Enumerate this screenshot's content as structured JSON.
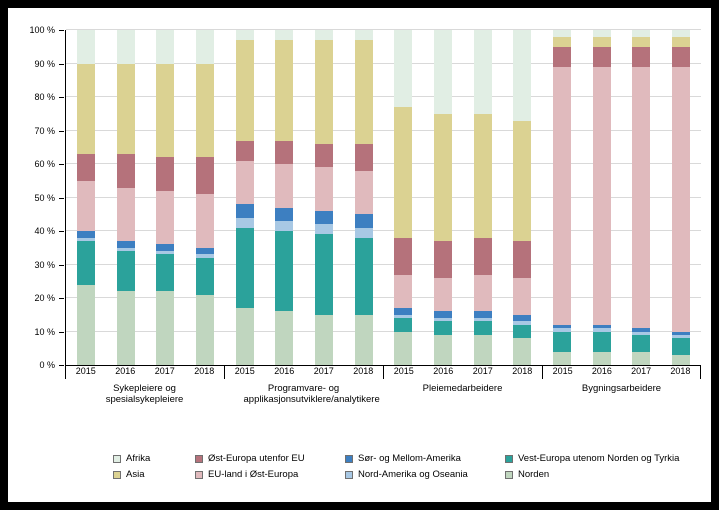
{
  "style_meta": {
    "background": "#000000",
    "panel": "#ffffff",
    "gridline": "#d9d9d9",
    "axis": "#000000",
    "text": "#000000"
  },
  "chart_data": {
    "type": "bar",
    "stacked": true,
    "stack_unit": "percent",
    "title": "",
    "grid": true,
    "legend_position": "bottom",
    "y_axis": {
      "min": 0,
      "max": 100,
      "tick_step": 10,
      "tick_labels": [
        "0 %",
        "10 %",
        "20 %",
        "30 %",
        "40 %",
        "50 %",
        "60 %",
        "70 %",
        "80 %",
        "90 %",
        "100 %"
      ]
    },
    "categories": [
      "2015",
      "2016",
      "2017",
      "2018"
    ],
    "series_order_bottom_to_top": [
      "Norden",
      "Vest-Europa utenom Norden og Tyrkia",
      "Nord-Amerika og Oseania",
      "Sør- og Mellom-Amerika",
      "EU-land i Øst-Europa",
      "Øst-Europa utenfor EU",
      "Asia",
      "Afrika"
    ],
    "colors": {
      "Afrika": "#e1eee4",
      "Asia": "#dbd292",
      "Øst-Europa utenfor EU": "#b5727b",
      "EU-land i Øst-Europa": "#e0babd",
      "Sør- og Mellom-Amerika": "#3d7fc1",
      "Nord-Amerika og Oseania": "#a8c8e4",
      "Vest-Europa utenom Norden og Tyrkia": "#2ba29b",
      "Norden": "#c0d6bf"
    },
    "groups": [
      {
        "label": "Sykepleiere og spesialsykepleiere",
        "bars": [
          [
            24,
            13,
            1,
            2,
            15,
            8,
            27,
            10
          ],
          [
            22,
            12,
            1,
            2,
            16,
            10,
            27,
            10
          ],
          [
            22,
            11,
            1,
            2,
            16,
            10,
            28,
            10
          ],
          [
            21,
            11,
            1,
            2,
            16,
            11,
            28,
            10
          ]
        ]
      },
      {
        "label": "Programvare- og applikasjonsutviklere/analytikere",
        "bars": [
          [
            17,
            24,
            3,
            4,
            13,
            6,
            30,
            3
          ],
          [
            16,
            24,
            3,
            4,
            13,
            7,
            30,
            3
          ],
          [
            15,
            24,
            3,
            4,
            13,
            7,
            31,
            3
          ],
          [
            15,
            23,
            3,
            4,
            13,
            8,
            31,
            3
          ]
        ]
      },
      {
        "label": "Pleiemedarbeidere",
        "bars": [
          [
            10,
            4,
            1,
            2,
            10,
            11,
            39,
            23
          ],
          [
            9,
            4,
            1,
            2,
            10,
            11,
            38,
            25
          ],
          [
            9,
            4,
            1,
            2,
            11,
            11,
            37,
            25
          ],
          [
            8,
            4,
            1,
            2,
            11,
            11,
            36,
            27
          ]
        ]
      },
      {
        "label": "Bygningsarbeidere",
        "bars": [
          [
            4,
            6,
            1,
            1,
            77,
            6,
            3,
            2
          ],
          [
            4,
            6,
            1,
            1,
            77,
            6,
            3,
            2
          ],
          [
            4,
            5,
            1,
            1,
            78,
            6,
            3,
            2
          ],
          [
            3,
            5,
            1,
            1,
            79,
            6,
            3,
            2
          ]
        ]
      }
    ],
    "legend_order": [
      "Afrika",
      "Øst-Europa utenfor EU",
      "Sør- og Mellom-Amerika",
      "Vest-Europa utenom Norden og Tyrkia",
      "Asia",
      "EU-land i Øst-Europa",
      "Nord-Amerika og Oseania",
      "Norden"
    ]
  }
}
